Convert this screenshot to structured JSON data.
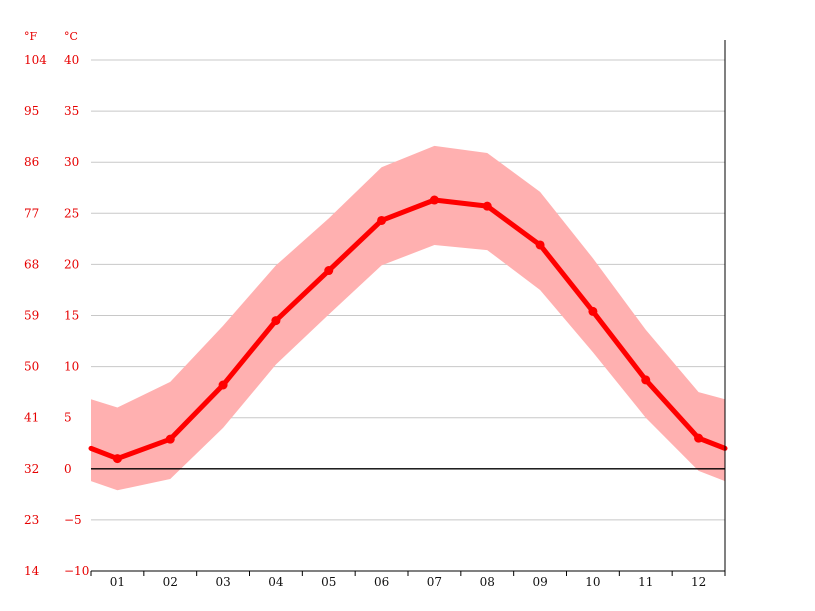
{
  "chart_data": {
    "type": "line",
    "title": "",
    "xlabel": "",
    "ylabel": "",
    "units": {
      "fahrenheit": "°F",
      "celsius": "°C"
    },
    "categories": [
      "01",
      "02",
      "03",
      "04",
      "05",
      "06",
      "07",
      "08",
      "09",
      "10",
      "11",
      "12"
    ],
    "ylim": [
      -10,
      40
    ],
    "yticks_c": [
      "40",
      "35",
      "30",
      "25",
      "20",
      "15",
      "10",
      "5",
      "0",
      "−5",
      "−10"
    ],
    "yticks_c_values": [
      40,
      35,
      30,
      25,
      20,
      15,
      10,
      5,
      0,
      -5,
      -10
    ],
    "yticks_f": [
      "104",
      "95",
      "86",
      "77",
      "68",
      "59",
      "50",
      "41",
      "32",
      "23",
      "14"
    ],
    "grid": true,
    "zero_line": true,
    "series": [
      {
        "role": "average",
        "values": [
          1.0,
          2.9,
          8.2,
          14.5,
          19.4,
          24.3,
          26.3,
          25.7,
          21.9,
          15.4,
          8.7,
          3.0
        ],
        "edge_values": [
          2.0,
          2.0
        ],
        "color": "#ff0000"
      },
      {
        "role": "range",
        "min": [
          -2.1,
          -1.0,
          4.0,
          10.2,
          15.1,
          19.9,
          21.9,
          21.4,
          17.5,
          11.4,
          5.0,
          -0.2
        ],
        "max": [
          6.0,
          8.5,
          14.0,
          19.9,
          24.5,
          29.5,
          31.6,
          30.9,
          27.1,
          20.6,
          13.6,
          7.5
        ],
        "edge_min": [
          -1.2,
          -1.2
        ],
        "edge_max": [
          6.8,
          6.8
        ],
        "color": "#ffb0b0"
      }
    ]
  }
}
